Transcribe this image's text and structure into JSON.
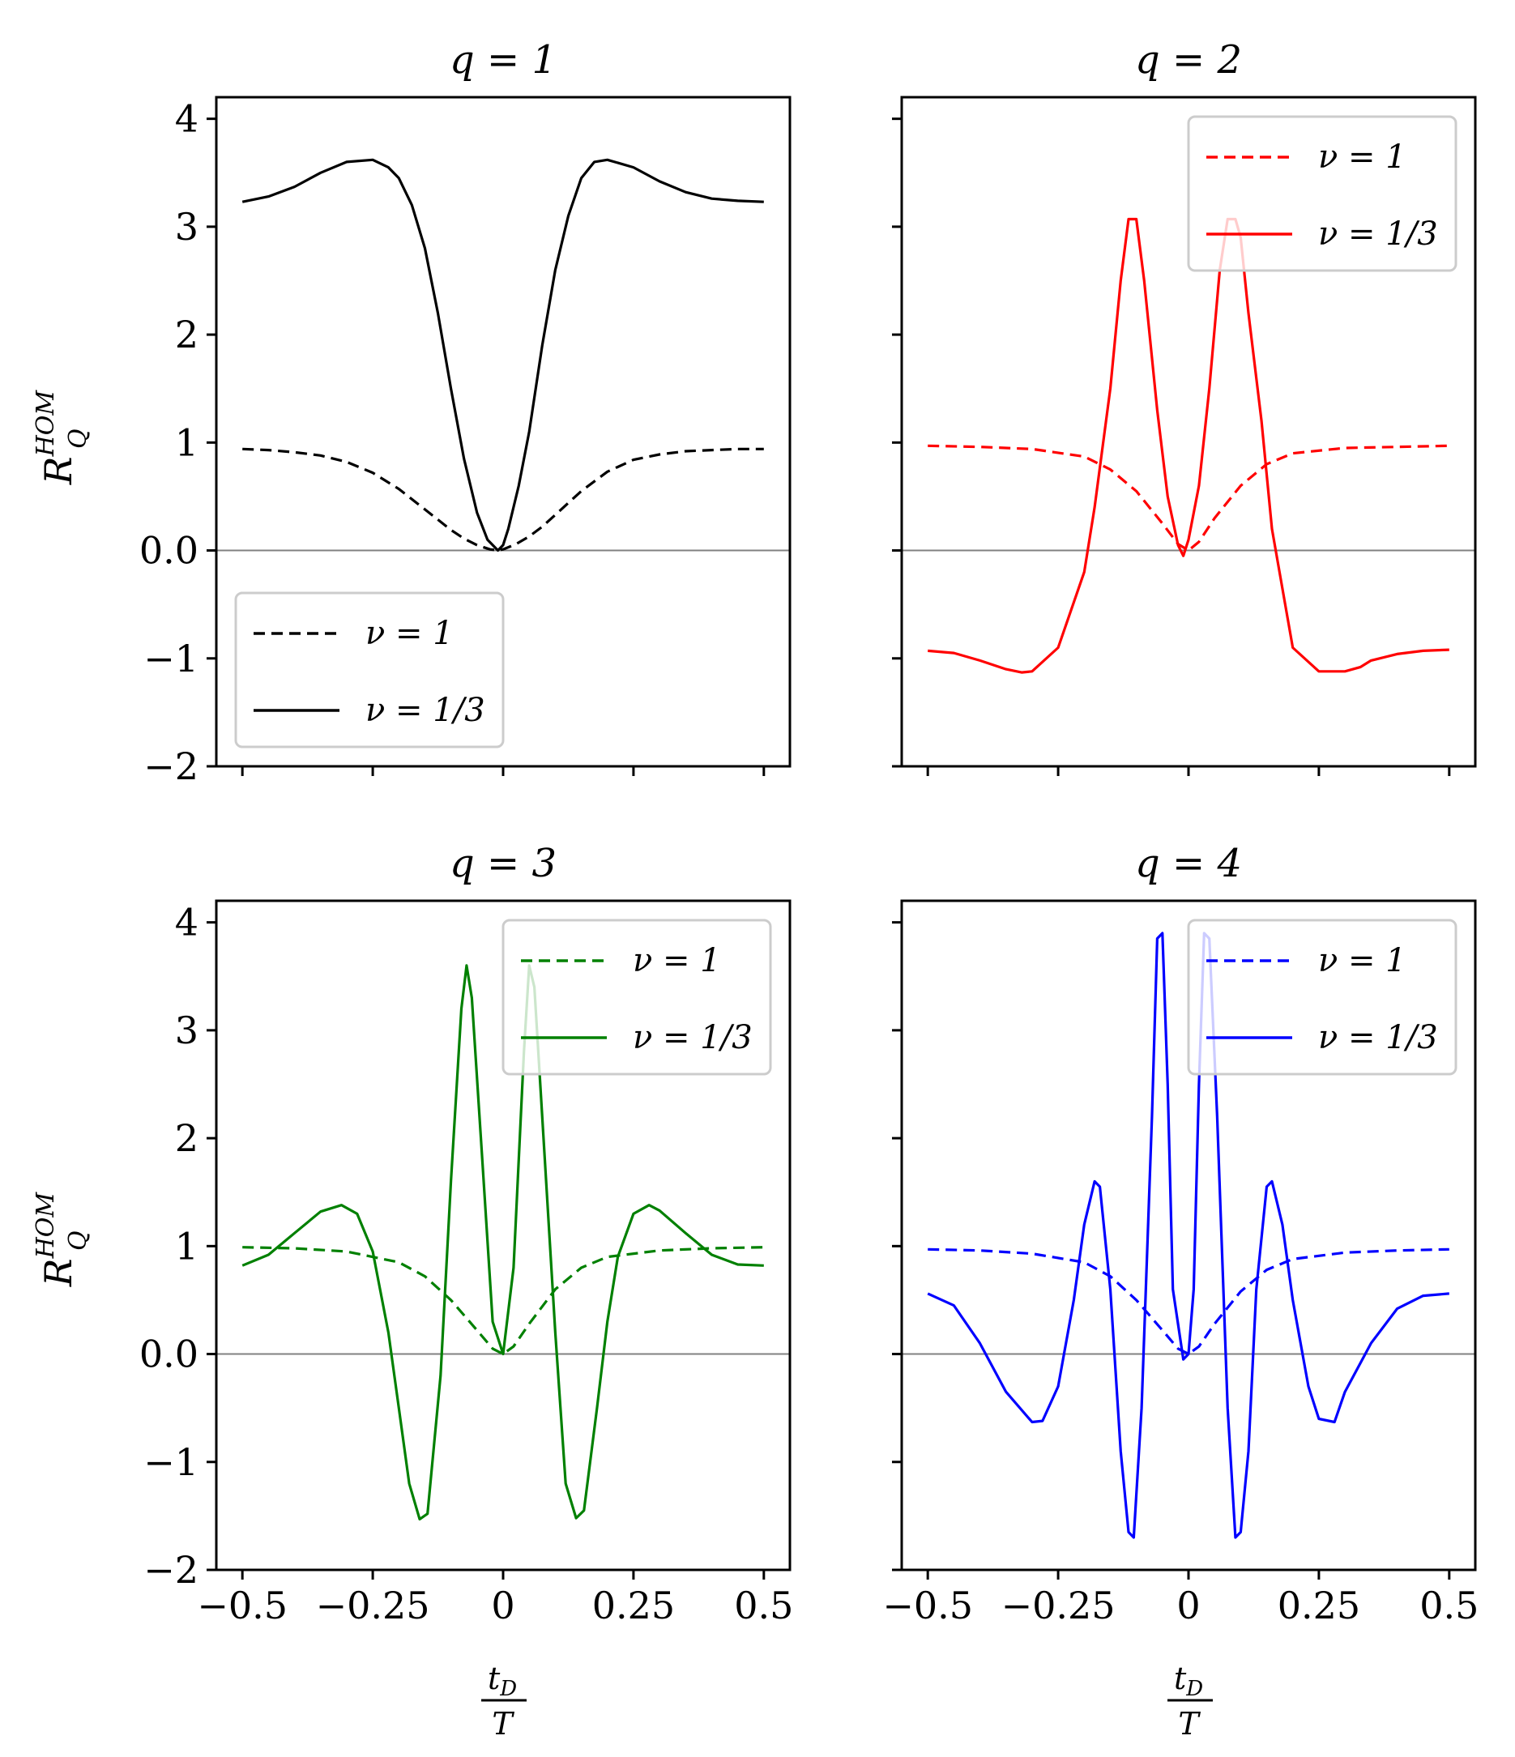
{
  "figure": {
    "ylabel_main": "R",
    "ylabel_sup": "HOM",
    "ylabel_sub": "Q",
    "xlabel_num": "t",
    "xlabel_num_sub": "D",
    "xlabel_den": "T"
  },
  "chart_data": [
    {
      "type": "line",
      "title": "q = 1",
      "xlim": [
        -0.55,
        0.55
      ],
      "ylim": [
        -2,
        4.2
      ],
      "xticks": [
        -0.5,
        -0.25,
        0,
        0.25,
        0.5
      ],
      "xtick_labels": [
        "−0.5",
        "−0.25",
        "0",
        "0.25",
        "0.5"
      ],
      "yticks": [
        -2,
        -1,
        0,
        1,
        2,
        3,
        4
      ],
      "ytick_labels": [
        "−2",
        "−1",
        "0.0",
        "1",
        "2",
        "3",
        "4"
      ],
      "show_xtick_labels": false,
      "show_ytick_labels": true,
      "color": "#000000",
      "legend_loc": "lower-left",
      "series": [
        {
          "name": "ν = 1",
          "style": "dashed",
          "x": [
            -0.5,
            -0.45,
            -0.4,
            -0.35,
            -0.3,
            -0.25,
            -0.2,
            -0.15,
            -0.1,
            -0.075,
            -0.05,
            -0.025,
            -0.01,
            0.0,
            0.025,
            0.05,
            0.075,
            0.1,
            0.15,
            0.2,
            0.25,
            0.3,
            0.35,
            0.4,
            0.45,
            0.5
          ],
          "values": [
            0.94,
            0.93,
            0.91,
            0.88,
            0.82,
            0.72,
            0.57,
            0.38,
            0.19,
            0.11,
            0.05,
            0.01,
            0.0,
            0.01,
            0.06,
            0.13,
            0.22,
            0.33,
            0.55,
            0.73,
            0.84,
            0.89,
            0.92,
            0.93,
            0.94,
            0.94
          ]
        },
        {
          "name": "ν = 1/3",
          "style": "solid",
          "x": [
            -0.5,
            -0.45,
            -0.4,
            -0.35,
            -0.3,
            -0.25,
            -0.22,
            -0.2,
            -0.175,
            -0.15,
            -0.125,
            -0.1,
            -0.075,
            -0.05,
            -0.03,
            -0.01,
            0.0,
            0.01,
            0.03,
            0.05,
            0.075,
            0.1,
            0.125,
            0.15,
            0.175,
            0.2,
            0.25,
            0.3,
            0.35,
            0.4,
            0.45,
            0.5
          ],
          "values": [
            3.23,
            3.28,
            3.37,
            3.5,
            3.6,
            3.62,
            3.55,
            3.45,
            3.2,
            2.8,
            2.2,
            1.5,
            0.85,
            0.35,
            0.1,
            0.0,
            0.05,
            0.2,
            0.6,
            1.1,
            1.9,
            2.6,
            3.1,
            3.45,
            3.6,
            3.62,
            3.55,
            3.42,
            3.32,
            3.26,
            3.24,
            3.23
          ]
        }
      ]
    },
    {
      "type": "line",
      "title": "q = 2",
      "xlim": [
        -0.55,
        0.55
      ],
      "ylim": [
        -2,
        4.2
      ],
      "xticks": [
        -0.5,
        -0.25,
        0,
        0.25,
        0.5
      ],
      "xtick_labels": [
        "−0.5",
        "−0.25",
        "0",
        "0.25",
        "0.5"
      ],
      "yticks": [
        -2,
        -1,
        0,
        1,
        2,
        3,
        4
      ],
      "ytick_labels": [
        "−2",
        "−1",
        "0.0",
        "1",
        "2",
        "3",
        "4"
      ],
      "show_xtick_labels": false,
      "show_ytick_labels": false,
      "color": "#ff0000",
      "legend_loc": "top-right",
      "series": [
        {
          "name": "ν = 1",
          "style": "dashed",
          "x": [
            -0.5,
            -0.4,
            -0.3,
            -0.2,
            -0.15,
            -0.1,
            -0.05,
            -0.02,
            0.0,
            0.02,
            0.05,
            0.1,
            0.15,
            0.2,
            0.3,
            0.4,
            0.5
          ],
          "values": [
            0.97,
            0.96,
            0.94,
            0.87,
            0.75,
            0.55,
            0.25,
            0.06,
            0.0,
            0.08,
            0.3,
            0.6,
            0.8,
            0.9,
            0.95,
            0.96,
            0.97
          ]
        },
        {
          "name": "ν = 1/3",
          "style": "solid",
          "x": [
            -0.5,
            -0.45,
            -0.4,
            -0.35,
            -0.32,
            -0.3,
            -0.25,
            -0.2,
            -0.18,
            -0.15,
            -0.13,
            -0.115,
            -0.1,
            -0.085,
            -0.06,
            -0.04,
            -0.02,
            -0.01,
            0.0,
            0.02,
            0.04,
            0.06,
            0.075,
            0.09,
            0.1,
            0.115,
            0.14,
            0.16,
            0.2,
            0.25,
            0.3,
            0.33,
            0.35,
            0.4,
            0.45,
            0.5
          ],
          "values": [
            -0.93,
            -0.95,
            -1.02,
            -1.1,
            -1.13,
            -1.12,
            -0.9,
            -0.2,
            0.4,
            1.5,
            2.5,
            3.07,
            3.07,
            2.5,
            1.3,
            0.5,
            0.05,
            -0.05,
            0.1,
            0.6,
            1.5,
            2.6,
            3.07,
            3.07,
            2.9,
            2.2,
            1.2,
            0.2,
            -0.9,
            -1.12,
            -1.12,
            -1.08,
            -1.02,
            -0.96,
            -0.93,
            -0.92
          ]
        }
      ]
    },
    {
      "type": "line",
      "title": "q = 3",
      "xlim": [
        -0.55,
        0.55
      ],
      "ylim": [
        -2,
        4.2
      ],
      "xticks": [
        -0.5,
        -0.25,
        0,
        0.25,
        0.5
      ],
      "xtick_labels": [
        "−0.5",
        "−0.25",
        "0",
        "0.25",
        "0.5"
      ],
      "yticks": [
        -2,
        -1,
        0,
        1,
        2,
        3,
        4
      ],
      "ytick_labels": [
        "−2",
        "−1",
        "0.0",
        "1",
        "2",
        "3",
        "4"
      ],
      "show_xtick_labels": true,
      "show_ytick_labels": true,
      "color": "#008000",
      "legend_loc": "top-right",
      "series": [
        {
          "name": "ν = 1",
          "style": "dashed",
          "x": [
            -0.5,
            -0.4,
            -0.3,
            -0.2,
            -0.15,
            -0.1,
            -0.05,
            -0.02,
            0.0,
            0.02,
            0.05,
            0.1,
            0.15,
            0.2,
            0.3,
            0.4,
            0.5
          ],
          "values": [
            0.99,
            0.98,
            0.95,
            0.85,
            0.72,
            0.5,
            0.22,
            0.05,
            0.0,
            0.07,
            0.28,
            0.6,
            0.8,
            0.9,
            0.96,
            0.98,
            0.99
          ]
        },
        {
          "name": "ν = 1/3",
          "style": "solid",
          "x": [
            -0.5,
            -0.45,
            -0.4,
            -0.35,
            -0.31,
            -0.28,
            -0.25,
            -0.22,
            -0.2,
            -0.18,
            -0.16,
            -0.145,
            -0.12,
            -0.1,
            -0.08,
            -0.07,
            -0.06,
            -0.04,
            -0.02,
            0.0,
            0.02,
            0.04,
            0.05,
            0.06,
            0.08,
            0.1,
            0.12,
            0.14,
            0.155,
            0.18,
            0.2,
            0.22,
            0.25,
            0.28,
            0.3,
            0.35,
            0.4,
            0.45,
            0.5
          ],
          "values": [
            0.82,
            0.92,
            1.12,
            1.32,
            1.38,
            1.3,
            0.95,
            0.2,
            -0.5,
            -1.2,
            -1.53,
            -1.48,
            -0.2,
            1.6,
            3.2,
            3.6,
            3.3,
            1.8,
            0.3,
            0.0,
            0.8,
            2.8,
            3.6,
            3.4,
            1.8,
            0.2,
            -1.2,
            -1.52,
            -1.45,
            -0.5,
            0.3,
            0.9,
            1.3,
            1.38,
            1.33,
            1.12,
            0.92,
            0.83,
            0.82
          ]
        }
      ]
    },
    {
      "type": "line",
      "title": "q = 4",
      "xlim": [
        -0.55,
        0.55
      ],
      "ylim": [
        -2,
        4.2
      ],
      "xticks": [
        -0.5,
        -0.25,
        0,
        0.25,
        0.5
      ],
      "xtick_labels": [
        "−0.5",
        "−0.25",
        "0",
        "0.25",
        "0.5"
      ],
      "yticks": [
        -2,
        -1,
        0,
        1,
        2,
        3,
        4
      ],
      "ytick_labels": [
        "−2",
        "−1",
        "0.0",
        "1",
        "2",
        "3",
        "4"
      ],
      "show_xtick_labels": true,
      "show_ytick_labels": false,
      "color": "#0000ff",
      "legend_loc": "top-right",
      "series": [
        {
          "name": "ν = 1",
          "style": "dashed",
          "x": [
            -0.5,
            -0.4,
            -0.3,
            -0.2,
            -0.15,
            -0.1,
            -0.05,
            -0.02,
            0.0,
            0.02,
            0.05,
            0.1,
            0.15,
            0.2,
            0.3,
            0.4,
            0.5
          ],
          "values": [
            0.97,
            0.96,
            0.93,
            0.85,
            0.72,
            0.5,
            0.22,
            0.05,
            0.0,
            0.07,
            0.28,
            0.58,
            0.78,
            0.88,
            0.94,
            0.96,
            0.97
          ]
        },
        {
          "name": "ν = 1/3",
          "style": "solid",
          "x": [
            -0.5,
            -0.45,
            -0.4,
            -0.35,
            -0.3,
            -0.28,
            -0.25,
            -0.22,
            -0.2,
            -0.18,
            -0.17,
            -0.15,
            -0.13,
            -0.115,
            -0.105,
            -0.09,
            -0.07,
            -0.06,
            -0.05,
            -0.04,
            -0.03,
            -0.01,
            0.0,
            0.01,
            0.02,
            0.03,
            0.04,
            0.055,
            0.075,
            0.09,
            0.1,
            0.115,
            0.13,
            0.15,
            0.16,
            0.18,
            0.2,
            0.23,
            0.25,
            0.28,
            0.3,
            0.35,
            0.4,
            0.45,
            0.5
          ],
          "values": [
            0.56,
            0.45,
            0.1,
            -0.35,
            -0.63,
            -0.62,
            -0.3,
            0.5,
            1.2,
            1.6,
            1.55,
            0.6,
            -0.9,
            -1.65,
            -1.7,
            -0.5,
            2.2,
            3.85,
            3.9,
            2.5,
            0.6,
            -0.05,
            0.0,
            0.6,
            2.5,
            3.9,
            3.85,
            2.2,
            -0.5,
            -1.7,
            -1.65,
            -0.9,
            0.6,
            1.55,
            1.6,
            1.2,
            0.5,
            -0.3,
            -0.6,
            -0.63,
            -0.35,
            0.1,
            0.42,
            0.54,
            0.56
          ]
        }
      ]
    }
  ]
}
